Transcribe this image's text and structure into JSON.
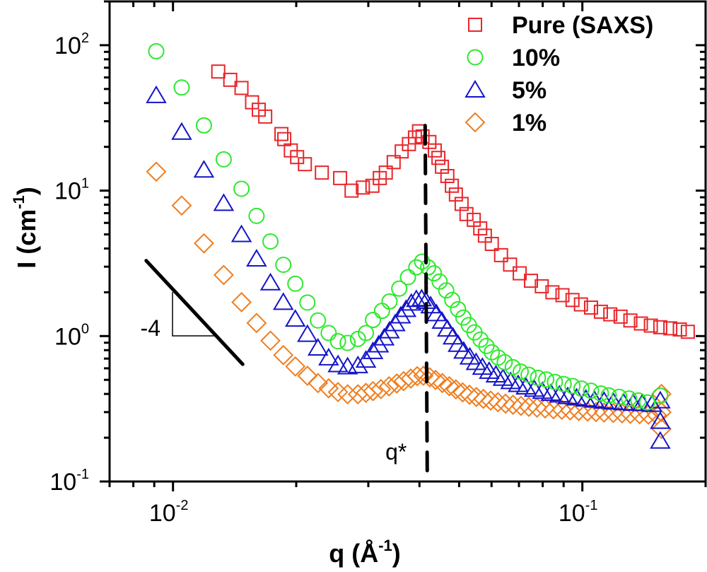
{
  "chart_data": {
    "type": "scatter",
    "title": "",
    "xlabel": "q (Å-1)",
    "xlabel_parts": {
      "main": "q (Å",
      "sup": "-1",
      "close": ")"
    },
    "ylabel": "I (cm-1)",
    "ylabel_parts": {
      "main": "I (cm",
      "sup": "-1",
      "close": ")"
    },
    "xscale": "log",
    "yscale": "log",
    "xlim": [
      0.007,
      0.2
    ],
    "ylim": [
      0.1,
      200
    ],
    "grid": false,
    "legend_position": "top-right",
    "x_ticks": [
      {
        "value": 0.01,
        "base": "10",
        "exp": "-2"
      },
      {
        "value": 0.1,
        "base": "10",
        "exp": "-1"
      }
    ],
    "y_ticks": [
      {
        "value": 0.1,
        "base": "10",
        "exp": "-1"
      },
      {
        "value": 1,
        "base": "10",
        "exp": "0"
      },
      {
        "value": 10,
        "base": "10",
        "exp": "1"
      },
      {
        "value": 100,
        "base": "10",
        "exp": "2"
      }
    ],
    "series": [
      {
        "name": "Pure (SAXS)",
        "marker": "square",
        "color": "#e8262b",
        "x": [
          0.0129,
          0.0138,
          0.0147,
          0.0156,
          0.0162,
          0.0168,
          0.0184,
          0.0187,
          0.0194,
          0.0201,
          0.021,
          0.0231,
          0.0256,
          0.0273,
          0.0291,
          0.0307,
          0.032,
          0.0331,
          0.0346,
          0.0362,
          0.0377,
          0.039,
          0.0399,
          0.0407,
          0.0423,
          0.0436,
          0.0445,
          0.0454,
          0.0468,
          0.048,
          0.0491,
          0.0507,
          0.0521,
          0.0543,
          0.0563,
          0.0578,
          0.0601,
          0.0633,
          0.0666,
          0.0703,
          0.0749,
          0.0796,
          0.0845,
          0.0894,
          0.0946,
          0.0992,
          0.105,
          0.111,
          0.117,
          0.124,
          0.131,
          0.139,
          0.147,
          0.155,
          0.164,
          0.173,
          0.181
        ],
        "y": [
          65.9,
          57.8,
          50.8,
          40.5,
          36.0,
          32.3,
          24.5,
          22.6,
          18.9,
          17.0,
          15.2,
          13.3,
          12.2,
          10.0,
          10.5,
          10.8,
          12.2,
          13.3,
          15.7,
          18.6,
          20.9,
          23.2,
          25.6,
          23.6,
          21.6,
          18.9,
          16.8,
          14.6,
          12.6,
          10.8,
          9.4,
          8.1,
          6.9,
          6.3,
          5.5,
          4.9,
          4.3,
          3.6,
          3.1,
          2.7,
          2.4,
          2.2,
          2.0,
          1.91,
          1.77,
          1.65,
          1.57,
          1.47,
          1.41,
          1.36,
          1.28,
          1.22,
          1.18,
          1.15,
          1.13,
          1.11,
          1.07
        ]
      },
      {
        "name": "10%",
        "marker": "circle",
        "color": "#2ee82e",
        "x": [
          0.0091,
          0.0105,
          0.0119,
          0.0133,
          0.0147,
          0.016,
          0.0173,
          0.0186,
          0.0199,
          0.0213,
          0.0226,
          0.024,
          0.0253,
          0.0267,
          0.0283,
          0.0296,
          0.0308,
          0.0324,
          0.0338,
          0.0357,
          0.0375,
          0.0393,
          0.0406,
          0.042,
          0.0434,
          0.0448,
          0.0465,
          0.0481,
          0.0497,
          0.0512,
          0.0528,
          0.0545,
          0.0564,
          0.0583,
          0.0601,
          0.0623,
          0.0646,
          0.0676,
          0.0707,
          0.0739,
          0.0779,
          0.0816,
          0.0857,
          0.09,
          0.0946,
          0.0995,
          0.105,
          0.111,
          0.116,
          0.123,
          0.13,
          0.137,
          0.144,
          0.155
        ],
        "y": [
          90.9,
          51.2,
          28.1,
          16.4,
          10.3,
          6.7,
          4.47,
          3.09,
          2.29,
          1.7,
          1.28,
          1.05,
          0.921,
          0.897,
          0.956,
          1.05,
          1.29,
          1.49,
          1.73,
          2.12,
          2.54,
          2.97,
          3.25,
          2.97,
          2.7,
          2.37,
          2.06,
          1.77,
          1.53,
          1.34,
          1.19,
          1.06,
          0.946,
          0.854,
          0.774,
          0.712,
          0.661,
          0.611,
          0.569,
          0.542,
          0.516,
          0.503,
          0.484,
          0.468,
          0.454,
          0.435,
          0.421,
          0.403,
          0.391,
          0.382,
          0.372,
          0.361,
          0.35,
          0.389
        ]
      },
      {
        "name": "5%",
        "marker": "triangle",
        "color": "#1414c8",
        "x": [
          0.0091,
          0.0105,
          0.0119,
          0.0133,
          0.0147,
          0.016,
          0.0173,
          0.0186,
          0.0199,
          0.0213,
          0.0226,
          0.024,
          0.0253,
          0.0267,
          0.0283,
          0.0296,
          0.0308,
          0.0318,
          0.0328,
          0.0338,
          0.0349,
          0.036,
          0.0371,
          0.0382,
          0.0393,
          0.0405,
          0.0415,
          0.0426,
          0.044,
          0.0454,
          0.0468,
          0.0483,
          0.0497,
          0.0513,
          0.0531,
          0.055,
          0.057,
          0.0592,
          0.0615,
          0.064,
          0.0668,
          0.0697,
          0.0728,
          0.0763,
          0.0799,
          0.0838,
          0.0879,
          0.0921,
          0.0968,
          0.102,
          0.107,
          0.113,
          0.119,
          0.126,
          0.133,
          0.14,
          0.148,
          0.155,
          0.155,
          0.155
        ],
        "y": [
          45.2,
          25.3,
          13.9,
          8.2,
          5.0,
          3.4,
          2.33,
          1.71,
          1.31,
          1.03,
          0.83,
          0.71,
          0.638,
          0.617,
          0.628,
          0.685,
          0.786,
          0.873,
          0.975,
          1.09,
          1.22,
          1.38,
          1.53,
          1.69,
          1.79,
          1.81,
          1.74,
          1.62,
          1.43,
          1.27,
          1.12,
          0.99,
          0.88,
          0.79,
          0.72,
          0.66,
          0.612,
          0.574,
          0.542,
          0.514,
          0.488,
          0.466,
          0.448,
          0.432,
          0.418,
          0.405,
          0.395,
          0.385,
          0.377,
          0.37,
          0.364,
          0.358,
          0.353,
          0.349,
          0.346,
          0.344,
          0.34,
          0.36,
          0.26,
          0.19
        ]
      },
      {
        "name": "1%",
        "marker": "diamond",
        "color": "#f07d1e",
        "x": [
          0.0091,
          0.0105,
          0.0119,
          0.0133,
          0.0147,
          0.016,
          0.0173,
          0.0186,
          0.0199,
          0.0213,
          0.0226,
          0.024,
          0.0253,
          0.0267,
          0.0283,
          0.0296,
          0.0308,
          0.0322,
          0.0337,
          0.0352,
          0.0366,
          0.0381,
          0.0395,
          0.0409,
          0.0424,
          0.0438,
          0.0455,
          0.0473,
          0.0491,
          0.051,
          0.053,
          0.0551,
          0.0573,
          0.0597,
          0.0622,
          0.0649,
          0.0677,
          0.0708,
          0.074,
          0.0775,
          0.0811,
          0.085,
          0.0891,
          0.0934,
          0.098,
          0.103,
          0.108,
          0.113,
          0.119,
          0.125,
          0.131,
          0.138,
          0.145,
          0.152,
          0.156,
          0.156,
          0.156
        ],
        "y": [
          13.5,
          7.9,
          4.34,
          2.63,
          1.71,
          1.23,
          0.93,
          0.74,
          0.618,
          0.533,
          0.475,
          0.437,
          0.412,
          0.398,
          0.398,
          0.407,
          0.418,
          0.432,
          0.451,
          0.472,
          0.49,
          0.51,
          0.53,
          0.533,
          0.52,
          0.499,
          0.475,
          0.452,
          0.43,
          0.41,
          0.395,
          0.381,
          0.37,
          0.36,
          0.351,
          0.343,
          0.337,
          0.331,
          0.326,
          0.322,
          0.318,
          0.314,
          0.311,
          0.308,
          0.305,
          0.302,
          0.3,
          0.298,
          0.296,
          0.294,
          0.292,
          0.29,
          0.288,
          0.286,
          0.4,
          0.3,
          0.23
        ]
      }
    ],
    "annotations": [
      {
        "type": "dashed-vline",
        "label": "q*",
        "x": 0.0413,
        "y_range": [
          0.1,
          28
        ]
      },
      {
        "type": "slope-line",
        "label": "-4",
        "x_range": [
          0.0086,
          0.0148
        ],
        "y_range": [
          3.3,
          0.64
        ]
      }
    ]
  }
}
